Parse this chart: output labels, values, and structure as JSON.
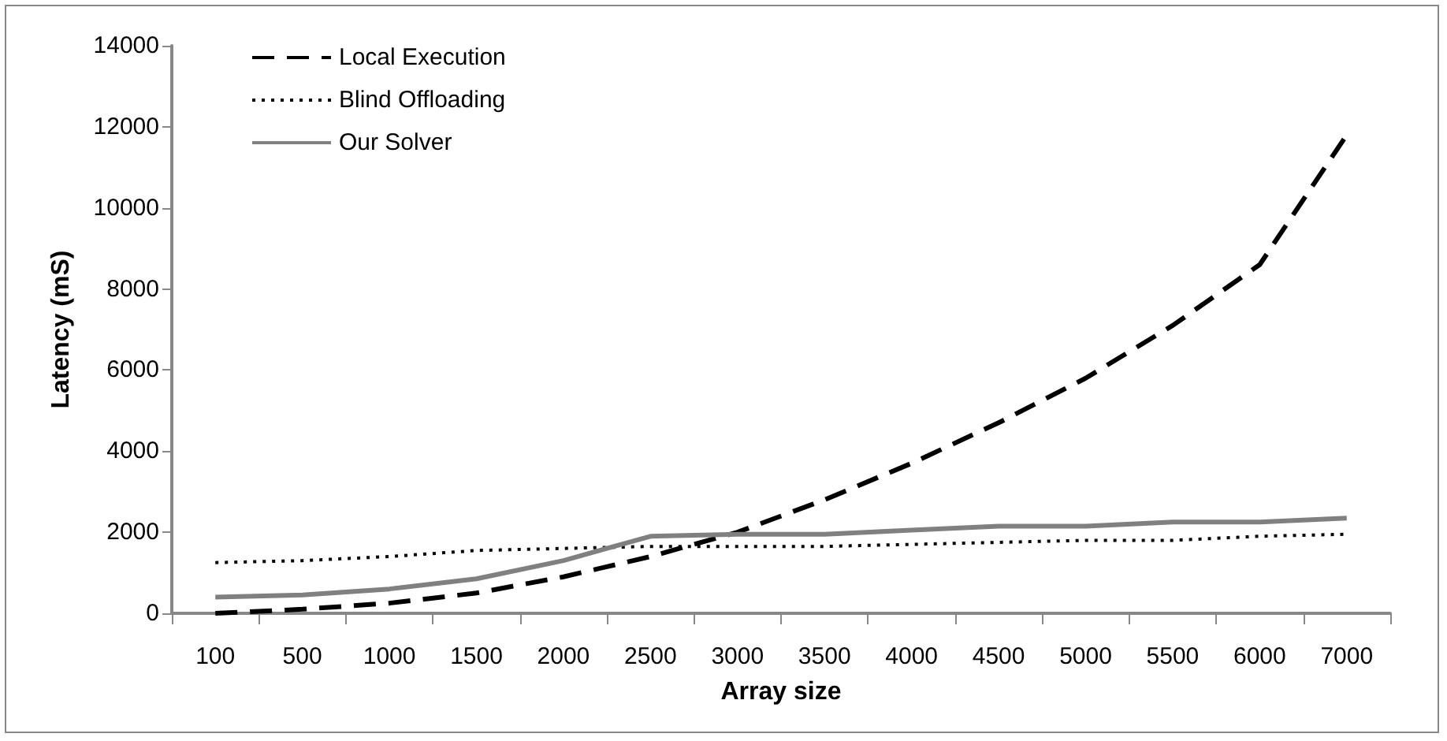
{
  "chart_data": {
    "type": "line",
    "xlabel": "Array size",
    "ylabel": "Latency (mS)",
    "categories": [
      "100",
      "500",
      "1000",
      "1500",
      "2000",
      "2500",
      "3000",
      "3500",
      "4000",
      "4500",
      "5000",
      "5500",
      "6000",
      "7000"
    ],
    "series": [
      {
        "name": "Local Execution",
        "color": "#000000",
        "line_style": "dashed",
        "values": [
          0,
          100,
          250,
          500,
          900,
          1400,
          2000,
          2800,
          3700,
          4700,
          5800,
          7100,
          8600,
          11800
        ]
      },
      {
        "name": "Blind Offloading",
        "color": "#000000",
        "line_style": "dotted",
        "values": [
          1250,
          1300,
          1400,
          1550,
          1600,
          1650,
          1650,
          1650,
          1700,
          1750,
          1800,
          1800,
          1900,
          1950
        ]
      },
      {
        "name": "Our Solver",
        "color": "#808080",
        "line_style": "solid",
        "values": [
          400,
          450,
          600,
          850,
          1300,
          1900,
          1950,
          1950,
          2050,
          2150,
          2150,
          2250,
          2250,
          2350
        ]
      }
    ],
    "ylim": [
      0,
      14000
    ],
    "yticks": [
      0,
      2000,
      4000,
      6000,
      8000,
      10000,
      12000,
      14000
    ],
    "grid": false,
    "legend": "top left",
    "marker": "none"
  }
}
